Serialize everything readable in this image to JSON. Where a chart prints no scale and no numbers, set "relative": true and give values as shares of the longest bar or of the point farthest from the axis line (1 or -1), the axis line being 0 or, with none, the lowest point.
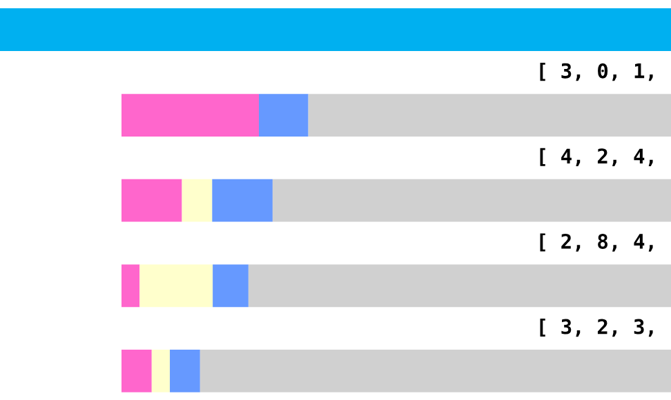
{
  "chart_data": {
    "type": "bar",
    "orientation": "horizontal",
    "stacked": true,
    "relative": true,
    "categories": [
      null,
      null,
      null,
      null
    ],
    "annotations": [
      "[ 3, 0, 1,",
      "[ 4, 2, 4,",
      "[ 2, 8, 4,",
      "[ 3, 2, 3,"
    ],
    "series": [
      {
        "color": "#ff66cc",
        "values": [
          0.25,
          0.11,
          0.033,
          0.055
        ]
      },
      {
        "color": "#ffffcc",
        "values": [
          0,
          0.055,
          0.133,
          0.033
        ]
      },
      {
        "color": "#6699ff",
        "values": [
          0.09,
          0.11,
          0.065,
          0.055
        ]
      },
      {
        "color": "#d0d0d0",
        "values": [
          0.66,
          0.725,
          0.769,
          0.857
        ]
      }
    ]
  }
}
